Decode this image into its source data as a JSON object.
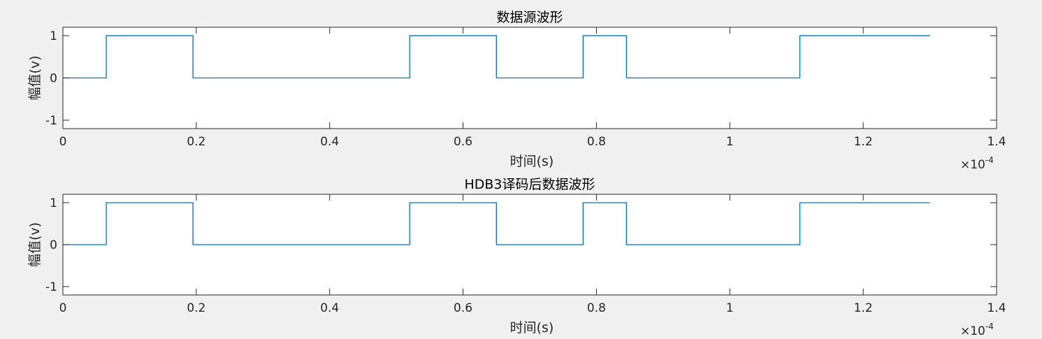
{
  "chart_data": [
    {
      "type": "line",
      "title": "数据源波形",
      "xlabel": "时间(s)",
      "ylabel": "幅值(v)",
      "xlim": [
        0,
        0.00014
      ],
      "ylim": [
        -1.2,
        1.2
      ],
      "x_ticks": [
        "0",
        "0.2",
        "0.4",
        "0.6",
        "0.8",
        "1",
        "1.2",
        "1.4"
      ],
      "x_tick_values": [
        0,
        2e-05,
        4e-05,
        6e-05,
        8e-05,
        0.0001,
        0.00012,
        0.00014
      ],
      "y_ticks": [
        "-1",
        "0",
        "1"
      ],
      "y_tick_values": [
        -1,
        0,
        1
      ],
      "x_multiplier_base": "×10",
      "x_multiplier_exp": "-4",
      "line_color": "#0072BD",
      "grid": false,
      "x": [
        0,
        6.5e-06,
        6.5e-06,
        1.95e-05,
        1.95e-05,
        5.2e-05,
        5.2e-05,
        6.5e-05,
        6.5e-05,
        7.8e-05,
        7.8e-05,
        8.45e-05,
        8.45e-05,
        0.0001105,
        0.0001105,
        0.00013
      ],
      "y": [
        0,
        0,
        1,
        1,
        0,
        0,
        1,
        1,
        0,
        0,
        1,
        1,
        0,
        0,
        1,
        1
      ]
    },
    {
      "type": "line",
      "title": "HDB3译码后数据波形",
      "xlabel": "时间(s)",
      "ylabel": "幅值(v)",
      "xlim": [
        0,
        0.00014
      ],
      "ylim": [
        -1.2,
        1.2
      ],
      "x_ticks": [
        "0",
        "0.2",
        "0.4",
        "0.6",
        "0.8",
        "1",
        "1.2",
        "1.4"
      ],
      "x_tick_values": [
        0,
        2e-05,
        4e-05,
        6e-05,
        8e-05,
        0.0001,
        0.00012,
        0.00014
      ],
      "y_ticks": [
        "-1",
        "0",
        "1"
      ],
      "y_tick_values": [
        -1,
        0,
        1
      ],
      "x_multiplier_base": "×10",
      "x_multiplier_exp": "-4",
      "line_color": "#0072BD",
      "grid": false,
      "x": [
        0,
        6.5e-06,
        6.5e-06,
        1.95e-05,
        1.95e-05,
        5.2e-05,
        5.2e-05,
        6.5e-05,
        6.5e-05,
        7.8e-05,
        7.8e-05,
        8.45e-05,
        8.45e-05,
        0.0001105,
        0.0001105,
        0.00013
      ],
      "y": [
        0,
        0,
        1,
        1,
        0,
        0,
        1,
        1,
        0,
        0,
        1,
        1,
        0,
        0,
        1,
        1
      ]
    }
  ]
}
